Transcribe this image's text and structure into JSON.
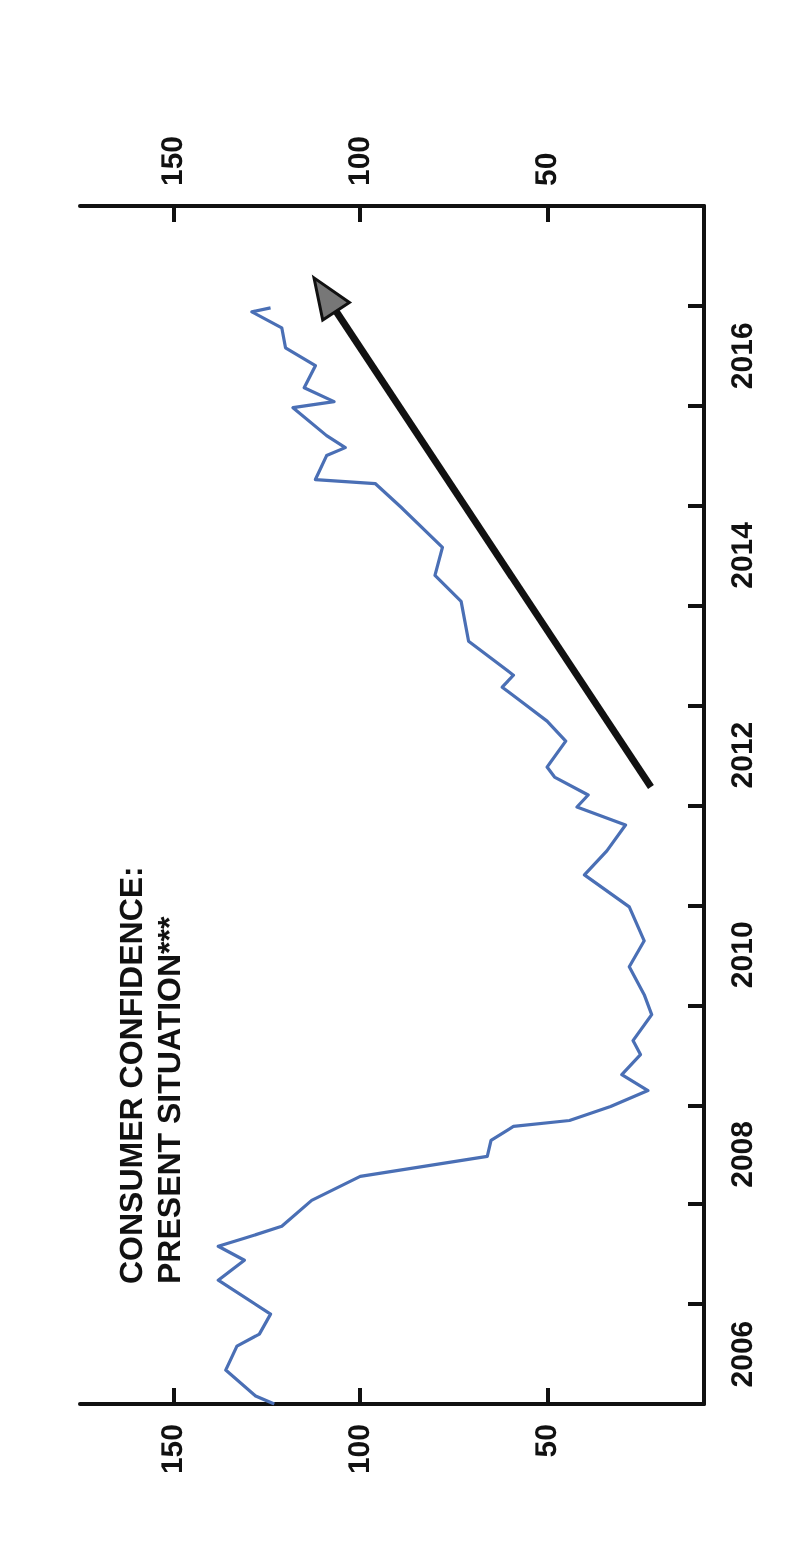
{
  "chart_data": {
    "type": "line",
    "title": "CONSUMER CONFIDENCE:\nPRESENT SITUATION***",
    "orientation": "horizontal",
    "x": [
      2006.0,
      2006.08,
      2006.34,
      2006.58,
      2006.7,
      2006.9,
      2007.24,
      2007.44,
      2007.58,
      2007.66,
      2007.78,
      2008.04,
      2008.28,
      2008.48,
      2008.64,
      2008.78,
      2008.84,
      2008.98,
      2009.14,
      2009.3,
      2009.5,
      2009.64,
      2009.9,
      2010.1,
      2010.38,
      2010.64,
      2010.98,
      2011.3,
      2011.54,
      2011.8,
      2011.98,
      2012.1,
      2012.28,
      2012.38,
      2012.64,
      2012.84,
      2013.04,
      2013.18,
      2013.3,
      2013.64,
      2014.04,
      2014.3,
      2014.58,
      2014.98,
      2015.22,
      2015.26,
      2015.5,
      2015.58,
      2015.7,
      2015.98,
      2016.04,
      2016.18,
      2016.4,
      2016.58,
      2016.78,
      2016.94,
      2016.98
    ],
    "series": [
      {
        "color": "#4a6fb5",
        "values": [
          123,
          128,
          136,
          133,
          127,
          124,
          138,
          131,
          138,
          131,
          121,
          113,
          100,
          66,
          65,
          59,
          44,
          33,
          23,
          30,
          25,
          27,
          22,
          24,
          28,
          24,
          28,
          40,
          34,
          29,
          42,
          39,
          48,
          50,
          45,
          50,
          57,
          62,
          59,
          71,
          73,
          80,
          78,
          89,
          96,
          112,
          109,
          104,
          109,
          118,
          107,
          115,
          112,
          120,
          121,
          129,
          124
        ]
      }
    ],
    "ylim": [
      2006,
      2018
    ],
    "yticks": [
      {
        "value": 2006.5,
        "label": "2006"
      },
      {
        "value": 2007,
        "label": null
      },
      {
        "value": 2008,
        "label": null
      },
      {
        "value": 2008.5,
        "label": "2008"
      },
      {
        "value": 2009,
        "label": null
      },
      {
        "value": 2010,
        "label": null
      },
      {
        "value": 2010.5,
        "label": "2010"
      },
      {
        "value": 2011,
        "label": null
      },
      {
        "value": 2012,
        "label": null
      },
      {
        "value": 2012.5,
        "label": "2012"
      },
      {
        "value": 2013,
        "label": null
      },
      {
        "value": 2014,
        "label": null
      },
      {
        "value": 2014.5,
        "label": "2014"
      },
      {
        "value": 2015,
        "label": null
      },
      {
        "value": 2016,
        "label": null
      },
      {
        "value": 2016.5,
        "label": "2016"
      },
      {
        "value": 2017,
        "label": null
      }
    ],
    "xlim": [
      175,
      8
    ],
    "xticks": [
      150,
      100,
      50
    ],
    "x2lim": [
      175,
      8
    ],
    "x2ticks": [
      150,
      100,
      50
    ],
    "grid": false
  }
}
